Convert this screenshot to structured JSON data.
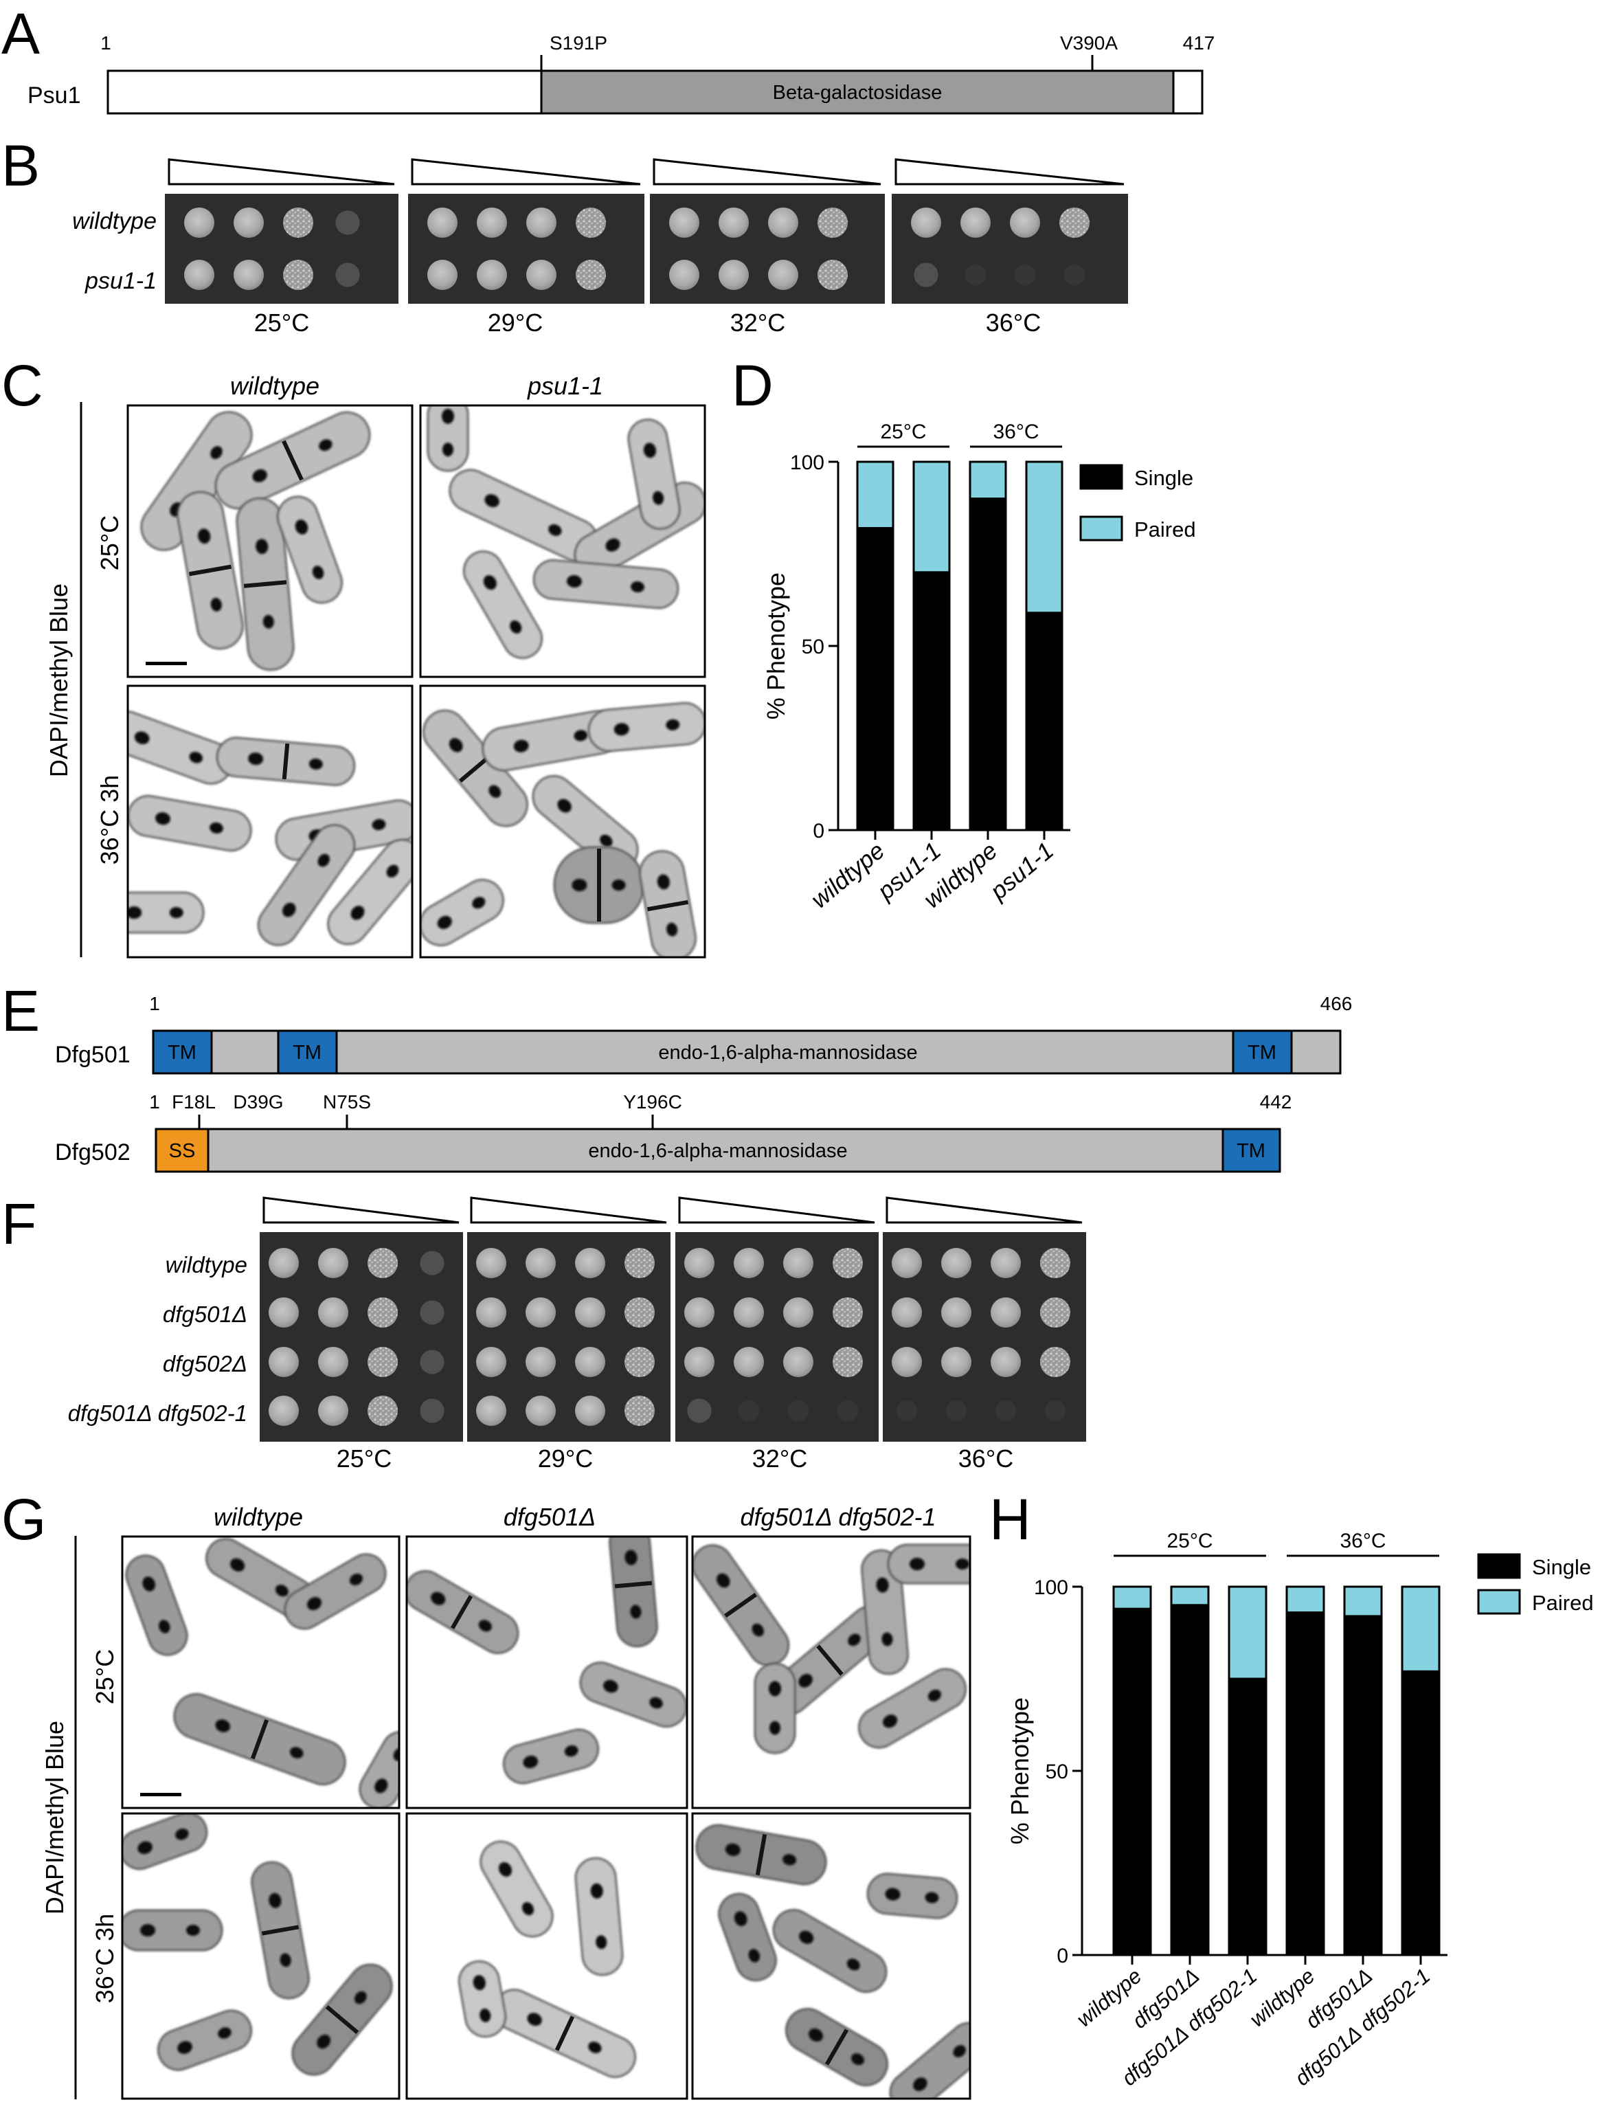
{
  "panels": {
    "A": "A",
    "B": "B",
    "C": "C",
    "D": "D",
    "E": "E",
    "F": "F",
    "G": "G",
    "H": "H"
  },
  "psu1": {
    "name": "Psu1",
    "start": "1",
    "end": "417",
    "length": 417,
    "mutations": [
      {
        "label": "S191P",
        "pos": 191
      },
      {
        "label": "V390A",
        "pos": 390
      }
    ],
    "domains": [
      {
        "label": "Beta-galactosidase",
        "from": 191,
        "to": 390,
        "color": "#9b9b9b"
      }
    ]
  },
  "spotB": {
    "rows": [
      "wildtype",
      "psu1-1"
    ],
    "temps": [
      "25°C",
      "29°C",
      "32°C",
      "36°C"
    ],
    "growth": [
      [
        [
          3,
          3,
          2,
          1
        ],
        [
          3,
          3,
          3,
          3
        ],
        [
          3,
          3,
          3,
          3
        ],
        [
          3,
          3,
          3,
          3
        ]
      ],
      [
        [
          3,
          3,
          2,
          1
        ],
        [
          3,
          3,
          3,
          3
        ],
        [
          3,
          3,
          3,
          3
        ],
        [
          1,
          0,
          0,
          0
        ]
      ]
    ]
  },
  "micrographC": {
    "columns": [
      "wildtype",
      "psu1-1"
    ],
    "rows": [
      "25°C",
      "36°C 3h"
    ],
    "stain": "DAPI/methyl Blue"
  },
  "chartD": {
    "type": "bar",
    "stacked": true,
    "categories": [
      "wildtype",
      "psu1-1",
      "wildtype",
      "psu1-1"
    ],
    "groups": [
      {
        "label": "25°C",
        "from": 0,
        "to": 1
      },
      {
        "label": "36°C",
        "from": 2,
        "to": 3
      }
    ],
    "series": [
      {
        "name": "Single",
        "values": [
          82,
          70,
          90,
          59
        ],
        "color": "#000000"
      },
      {
        "name": "Paired",
        "values": [
          18,
          30,
          10,
          41
        ],
        "color": "#86d2e0"
      }
    ],
    "ylabel": "% Phenotype",
    "ylim": [
      0,
      100
    ],
    "yticks": [
      "0",
      "50",
      "100"
    ],
    "legend": "right"
  },
  "dfg501": {
    "name": "Dfg501",
    "start": "1",
    "end": "466",
    "length": 466,
    "label": "endo-1,6-alpha-mannosidase",
    "segments": [
      {
        "label": "TM",
        "from": 1,
        "to": 26,
        "color": "#1b6fb9"
      },
      {
        "label": "TM",
        "from": 55,
        "to": 80,
        "color": "#1b6fb9"
      },
      {
        "label": "TM",
        "from": 427,
        "to": 451,
        "color": "#1b6fb9"
      }
    ]
  },
  "dfg502": {
    "name": "Dfg502",
    "start": "1",
    "end": "442",
    "length": 442,
    "label": "endo-1,6-alpha-mannosidase",
    "mutations": [
      {
        "label": "F18L",
        "pos": 18
      },
      {
        "label": "D39G",
        "pos": 39
      },
      {
        "label": "N75S",
        "pos": 75
      },
      {
        "label": "Y196C",
        "pos": 196
      }
    ],
    "segments": [
      {
        "label": "SS",
        "from": 1,
        "to": 22,
        "color": "#f0961e"
      },
      {
        "label": "TM",
        "from": 418,
        "to": 442,
        "color": "#1b6fb9"
      }
    ]
  },
  "spotF": {
    "rows": [
      "wildtype",
      "dfg501Δ",
      "dfg502Δ",
      "dfg501Δ dfg502-1"
    ],
    "temps": [
      "25°C",
      "29°C",
      "32°C",
      "36°C"
    ],
    "growth": [
      [
        [
          3,
          3,
          2,
          1
        ],
        [
          3,
          3,
          3,
          3
        ],
        [
          3,
          3,
          3,
          3
        ],
        [
          3,
          3,
          3,
          3
        ]
      ],
      [
        [
          3,
          3,
          2,
          1
        ],
        [
          3,
          3,
          3,
          3
        ],
        [
          3,
          3,
          3,
          3
        ],
        [
          3,
          3,
          3,
          3
        ]
      ],
      [
        [
          3,
          3,
          2,
          1
        ],
        [
          3,
          3,
          3,
          3
        ],
        [
          3,
          3,
          3,
          3
        ],
        [
          3,
          3,
          3,
          3
        ]
      ],
      [
        [
          3,
          3,
          2,
          1
        ],
        [
          3,
          3,
          3,
          3
        ],
        [
          1,
          0,
          0,
          0
        ],
        [
          0,
          0,
          0,
          0
        ]
      ]
    ]
  },
  "micrographG": {
    "columns": [
      "wildtype",
      "dfg501Δ",
      "dfg501Δ dfg502-1"
    ],
    "rows": [
      "25°C",
      "36°C 3h"
    ],
    "stain": "DAPI/methyl Blue"
  },
  "chartH": {
    "type": "bar",
    "stacked": true,
    "categories": [
      "wildtype",
      "dfg501Δ",
      "dfg501Δ dfg502-1",
      "wildtype",
      "dfg501Δ",
      "dfg501Δ dfg502-1"
    ],
    "groups": [
      {
        "label": "25°C",
        "from": 0,
        "to": 2
      },
      {
        "label": "36°C",
        "from": 3,
        "to": 5
      }
    ],
    "series": [
      {
        "name": "Single",
        "values": [
          94,
          95,
          75,
          93,
          92,
          77
        ],
        "color": "#000000"
      },
      {
        "name": "Paired",
        "values": [
          6,
          5,
          25,
          7,
          8,
          23
        ],
        "color": "#86d2e0"
      }
    ],
    "ylabel": "% Phenotype",
    "ylim": [
      0,
      100
    ],
    "yticks": [
      "0",
      "50",
      "100"
    ],
    "legend": "right"
  }
}
